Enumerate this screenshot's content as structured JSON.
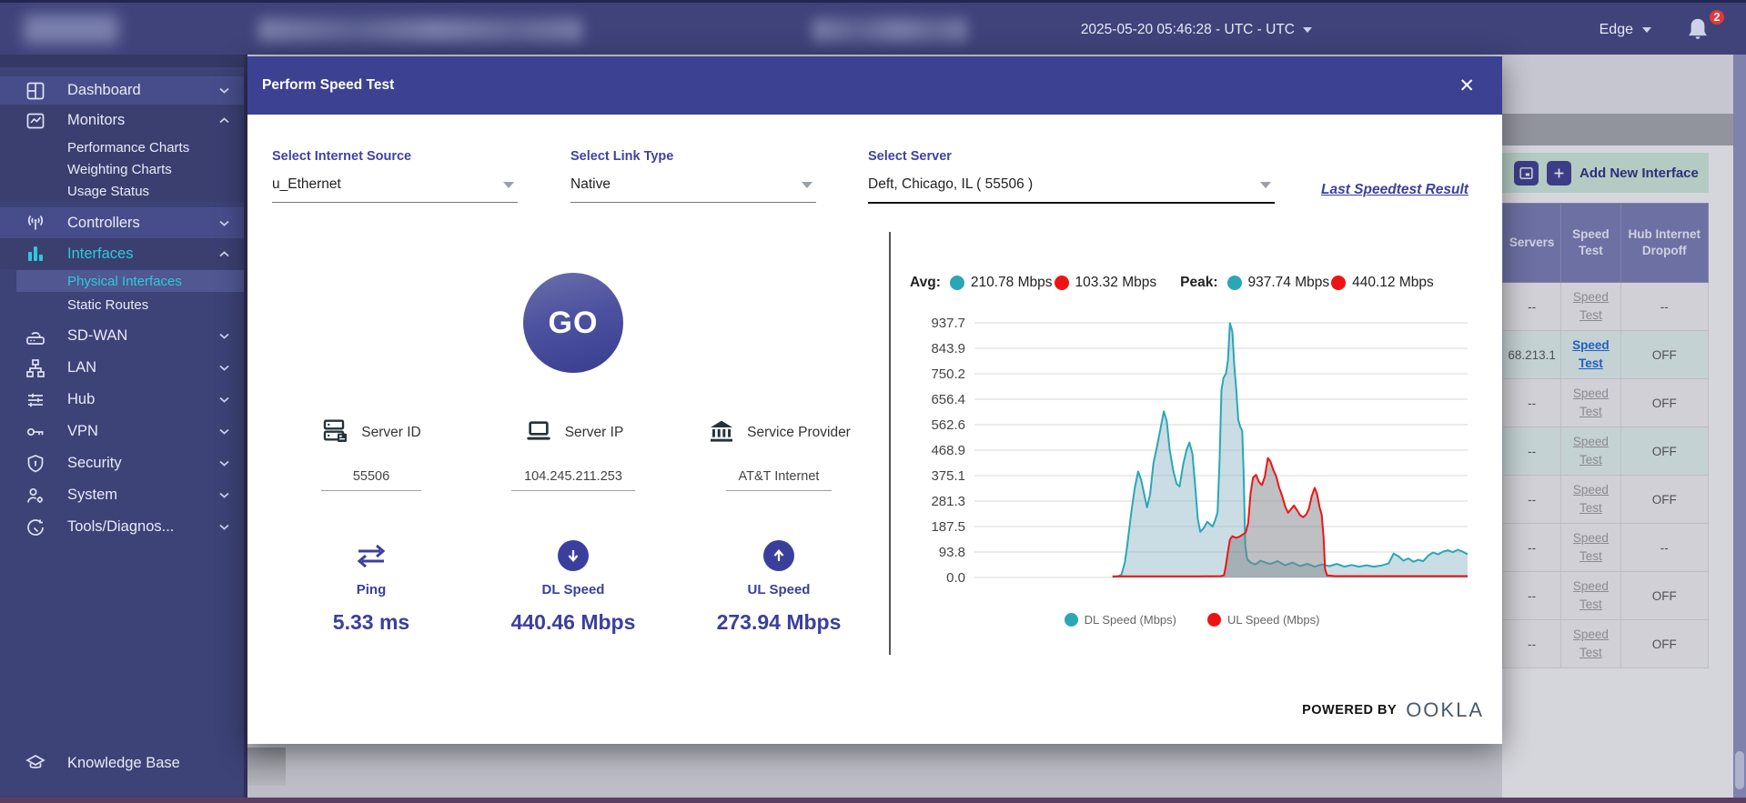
{
  "topbar": {
    "datetime": "2025-05-20 05:46:28 - UTC - UTC",
    "edge_label": "Edge",
    "notification_count": "2"
  },
  "sidebar": {
    "items": [
      {
        "label": "Dashboard",
        "icon": "dashboard-icon",
        "chevron": "down",
        "variant": "light"
      },
      {
        "label": "Monitors",
        "icon": "monitors-icon",
        "chevron": "up",
        "variant": "group",
        "children": [
          {
            "label": "Performance Charts"
          },
          {
            "label": "Weighting Charts"
          },
          {
            "label": "Usage Status"
          }
        ]
      },
      {
        "label": "Controllers",
        "icon": "controllers-icon",
        "chevron": "down",
        "variant": "light"
      },
      {
        "label": "Interfaces",
        "icon": "interfaces-icon",
        "chevron": "up",
        "variant": "group",
        "active": true,
        "children": [
          {
            "label": "Physical Interfaces",
            "active": true,
            "highlight": true
          },
          {
            "label": "Static Routes"
          }
        ]
      },
      {
        "label": "SD-WAN",
        "icon": "sdwan-icon",
        "chevron": "down"
      },
      {
        "label": "LAN",
        "icon": "lan-icon",
        "chevron": "down"
      },
      {
        "label": "Hub",
        "icon": "hub-icon",
        "chevron": "down"
      },
      {
        "label": "VPN",
        "icon": "vpn-icon",
        "chevron": "down"
      },
      {
        "label": "Security",
        "icon": "security-icon",
        "chevron": "down"
      },
      {
        "label": "System",
        "icon": "system-icon",
        "chevron": "down"
      },
      {
        "label": "Tools/Diagnos...",
        "icon": "tools-icon",
        "chevron": "down"
      }
    ],
    "footer_item": {
      "label": "Knowledge Base",
      "icon": "knowledge-base-icon"
    }
  },
  "modal": {
    "title": "Perform Speed Test",
    "close_glyph": "✕",
    "selects": [
      {
        "label": "Select Internet Source",
        "value": "u_Ethernet",
        "focused": false
      },
      {
        "label": "Select Link Type",
        "value": "Native",
        "focused": false
      },
      {
        "label": "Select Server",
        "value": "Deft, Chicago, IL ( 55506 )",
        "focused": true
      }
    ],
    "last_result_link": "Last Speedtest Result",
    "go_label": "GO",
    "server_info": [
      {
        "label": "Server ID",
        "value": "55506",
        "icon": "server-id-icon"
      },
      {
        "label": "Server IP",
        "value": "104.245.211.253",
        "icon": "server-ip-icon"
      },
      {
        "label": "Service Provider",
        "value": "AT&T Internet",
        "icon": "service-provider-icon"
      }
    ],
    "metrics": [
      {
        "label": "Ping",
        "value": "5.33 ms",
        "icon": "ping-icon"
      },
      {
        "label": "DL Speed",
        "value": "440.46 Mbps",
        "icon": "dl-speed-icon"
      },
      {
        "label": "UL Speed",
        "value": "273.94 Mbps",
        "icon": "ul-speed-icon"
      }
    ],
    "powered_by": "POWERED BY",
    "brand": "OOKLA"
  },
  "chart_data": {
    "type": "area",
    "title": "",
    "xlabel": "",
    "ylabel": "",
    "grid": true,
    "legend_position": "bottom",
    "ylim": [
      0,
      937.7
    ],
    "xlim": [
      0,
      100
    ],
    "yticks": [
      "937.7",
      "843.9",
      "750.2",
      "656.4",
      "562.6",
      "468.9",
      "375.1",
      "281.3",
      "187.5",
      "93.8",
      "0.0"
    ],
    "stats": {
      "avg_label": "Avg:",
      "peak_label": "Peak:",
      "avg": [
        {
          "name": "DL",
          "value": "210.78 Mbps",
          "color": "#2aa7b7"
        },
        {
          "name": "UL",
          "value": "103.32 Mbps",
          "color": "#ee1414"
        }
      ],
      "peak": [
        {
          "name": "DL",
          "value": "937.74 Mbps",
          "color": "#2aa7b7"
        },
        {
          "name": "UL",
          "value": "440.12 Mbps",
          "color": "#ee1414"
        }
      ]
    },
    "series": [
      {
        "name": "DL Speed (Mbps)",
        "color": "#2aa7b7",
        "fill": "rgba(140,180,195,0.45)",
        "points": [
          [
            28,
            2
          ],
          [
            29,
            4
          ],
          [
            29.8,
            10
          ],
          [
            30.5,
            55
          ],
          [
            31,
            120
          ],
          [
            31.8,
            240
          ],
          [
            32.5,
            330
          ],
          [
            33.2,
            390
          ],
          [
            33.8,
            360
          ],
          [
            34.5,
            300
          ],
          [
            35,
            258
          ],
          [
            35.6,
            305
          ],
          [
            36.3,
            420
          ],
          [
            37,
            480
          ],
          [
            37.7,
            545
          ],
          [
            38.4,
            612
          ],
          [
            39,
            575
          ],
          [
            39.6,
            470
          ],
          [
            40.3,
            395
          ],
          [
            41,
            345
          ],
          [
            41.6,
            335
          ],
          [
            42.3,
            415
          ],
          [
            43,
            470
          ],
          [
            43.6,
            497
          ],
          [
            44.2,
            455
          ],
          [
            44.8,
            330
          ],
          [
            45.3,
            215
          ],
          [
            45.8,
            168
          ],
          [
            46.5,
            182
          ],
          [
            47.2,
            205
          ],
          [
            47.8,
            195
          ],
          [
            48.3,
            188
          ],
          [
            48.8,
            210
          ],
          [
            49.3,
            240
          ],
          [
            49.7,
            430
          ],
          [
            50.1,
            690
          ],
          [
            50.5,
            735
          ],
          [
            51,
            750
          ],
          [
            51.4,
            800
          ],
          [
            51.8,
            937
          ],
          [
            52.3,
            905
          ],
          [
            52.7,
            780
          ],
          [
            53.1,
            690
          ],
          [
            53.5,
            580
          ],
          [
            53.9,
            555
          ],
          [
            54.3,
            540
          ],
          [
            54.6,
            380
          ],
          [
            54.9,
            120
          ],
          [
            55.3,
            68
          ],
          [
            56,
            55
          ],
          [
            57,
            48
          ],
          [
            58,
            62
          ],
          [
            59,
            55
          ],
          [
            60,
            50
          ],
          [
            61.5,
            60
          ],
          [
            63,
            45
          ],
          [
            64.5,
            55
          ],
          [
            66,
            42
          ],
          [
            67.5,
            50
          ],
          [
            69,
            40
          ],
          [
            70.5,
            48
          ],
          [
            72,
            42
          ],
          [
            73.5,
            50
          ],
          [
            75,
            40
          ],
          [
            76.5,
            46
          ],
          [
            78,
            40
          ],
          [
            79.5,
            45
          ],
          [
            81,
            40
          ],
          [
            82.5,
            44
          ],
          [
            84,
            52
          ],
          [
            85,
            88
          ],
          [
            86,
            78
          ],
          [
            87,
            62
          ],
          [
            88,
            70
          ],
          [
            89,
            58
          ],
          [
            90,
            65
          ],
          [
            91,
            60
          ],
          [
            92,
            80
          ],
          [
            93,
            92
          ],
          [
            94,
            85
          ],
          [
            95,
            95
          ],
          [
            96,
            100
          ],
          [
            97,
            93
          ],
          [
            98,
            102
          ],
          [
            99,
            95
          ],
          [
            100,
            85
          ]
        ]
      },
      {
        "name": "UL Speed (Mbps)",
        "color": "#ee1414",
        "fill": "rgba(125,130,135,0.50)",
        "points": [
          [
            28,
            4
          ],
          [
            35,
            4
          ],
          [
            45,
            4
          ],
          [
            50,
            5
          ],
          [
            50.6,
            8
          ],
          [
            51,
            45
          ],
          [
            51.4,
            95
          ],
          [
            51.8,
            140
          ],
          [
            52.3,
            152
          ],
          [
            53,
            146
          ],
          [
            53.7,
            150
          ],
          [
            54.4,
            158
          ],
          [
            55,
            165
          ],
          [
            55.5,
            200
          ],
          [
            56,
            310
          ],
          [
            56.5,
            368
          ],
          [
            57.1,
            378
          ],
          [
            57.7,
            352
          ],
          [
            58.3,
            340
          ],
          [
            58.9,
            372
          ],
          [
            59.5,
            440
          ],
          [
            60,
            428
          ],
          [
            60.6,
            396
          ],
          [
            61.2,
            372
          ],
          [
            61.8,
            330
          ],
          [
            62.4,
            300
          ],
          [
            63,
            262
          ],
          [
            63.6,
            238
          ],
          [
            64.2,
            252
          ],
          [
            64.8,
            265
          ],
          [
            65.4,
            248
          ],
          [
            66,
            230
          ],
          [
            66.6,
            222
          ],
          [
            67.2,
            230
          ],
          [
            67.8,
            252
          ],
          [
            68.4,
            300
          ],
          [
            69,
            330
          ],
          [
            69.5,
            305
          ],
          [
            70,
            258
          ],
          [
            70.4,
            232
          ],
          [
            70.8,
            150
          ],
          [
            71.1,
            30
          ],
          [
            71.5,
            8
          ],
          [
            73,
            5
          ],
          [
            76,
            5
          ],
          [
            80,
            5
          ],
          [
            85,
            5
          ],
          [
            90,
            5
          ],
          [
            95,
            5
          ],
          [
            100,
            5
          ]
        ]
      }
    ]
  },
  "background": {
    "toolbar": {
      "add_button_label": "Add New Interface"
    },
    "table": {
      "headers": [
        "Servers",
        "Speed Test",
        "Hub Internet Dropoff"
      ],
      "link_label": "Speed Test",
      "rows": [
        {
          "server": "--",
          "dropoff": "--",
          "link_active": false,
          "tint": false
        },
        {
          "server": "68.213.1",
          "dropoff": "OFF",
          "link_active": true,
          "tint": true
        },
        {
          "server": "--",
          "dropoff": "OFF",
          "link_active": false,
          "tint": false
        },
        {
          "server": "--",
          "dropoff": "OFF",
          "link_active": false,
          "tint": true
        },
        {
          "server": "--",
          "dropoff": "OFF",
          "link_active": false,
          "tint": false
        },
        {
          "server": "--",
          "dropoff": "--",
          "link_active": false,
          "tint": false
        },
        {
          "server": "--",
          "dropoff": "OFF",
          "link_active": false,
          "tint": false
        },
        {
          "server": "--",
          "dropoff": "OFF",
          "link_active": false,
          "tint": false
        }
      ]
    }
  },
  "colors": {
    "accent_cyan": "#2ec9d9",
    "indigo": "#3b3f9c",
    "chart_teal": "#2aa7b7",
    "chart_red": "#ee1414",
    "link_blue": "#1668d8",
    "badge_red": "#e53935"
  }
}
